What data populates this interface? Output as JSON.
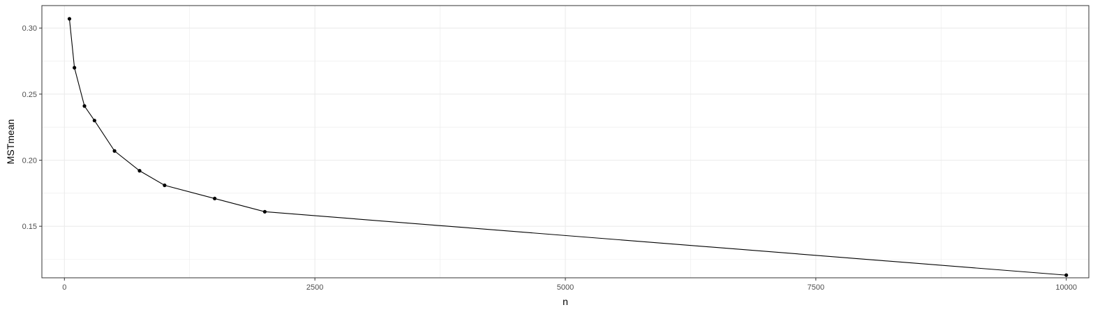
{
  "chart_data": {
    "type": "line",
    "title": "",
    "xlabel": "n",
    "ylabel": "MSTmean",
    "xlim": [
      -225,
      10225
    ],
    "ylim": [
      0.111,
      0.317
    ],
    "x_ticks": [
      0,
      2500,
      5000,
      7500,
      10000
    ],
    "x_tick_labels": [
      "0",
      "2500",
      "5000",
      "7500",
      "10000"
    ],
    "x_minor_ticks": [
      1250,
      3750,
      6250,
      8750
    ],
    "y_ticks": [
      0.15,
      0.2,
      0.25,
      0.3
    ],
    "y_tick_labels": [
      "0.15",
      "0.20",
      "0.25",
      "0.30"
    ],
    "y_minor_ticks": [
      0.125,
      0.175,
      0.225,
      0.275
    ],
    "grid": true,
    "legend": "none",
    "colors": {
      "line": "#000000",
      "grid": "#ebebeb",
      "panel_border": "#333333"
    },
    "series": [
      {
        "x": [
          50,
          100,
          200,
          300,
          500,
          750,
          1000,
          1500,
          2000,
          10000
        ],
        "y": [
          0.307,
          0.27,
          0.241,
          0.23,
          0.207,
          0.192,
          0.181,
          0.171,
          0.161,
          0.113
        ]
      }
    ]
  }
}
